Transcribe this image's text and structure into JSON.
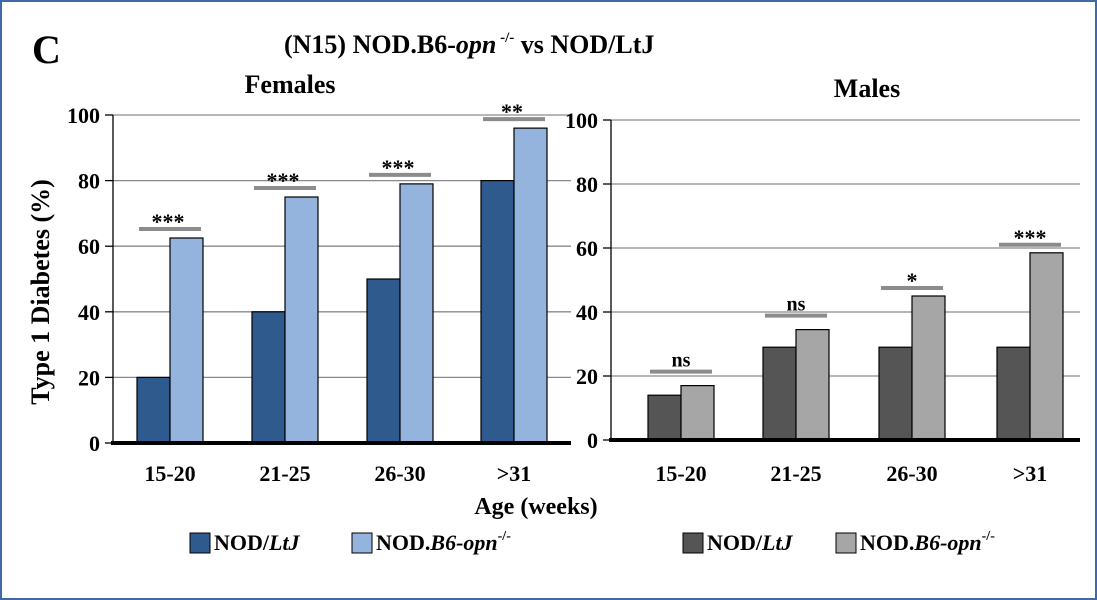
{
  "panel_letter": "C",
  "figure_title": {
    "prefix": "(N15) NOD.B6-",
    "gene": "opn",
    "superscript": " -/-",
    "suffix": " vs NOD/LtJ"
  },
  "shared_ylabel": "Type 1 Diabetes (%)",
  "shared_xlabel": "Age (weeks)",
  "colors": {
    "female_nod_ltj": "#2f5a8e",
    "female_opn_ko": "#94b4dd",
    "male_nod_ltj": "#555555",
    "male_opn_ko": "#a6a6a6",
    "significance_bar": "#8c8c8c",
    "frame": "#3f6aa6"
  },
  "chart_data": [
    {
      "type": "bar",
      "title": "Females",
      "ylabel": "Type 1 Diabetes (%)",
      "xlabel": "Age (weeks)",
      "ylim": [
        0,
        100
      ],
      "yticks": [
        "0",
        "20",
        "40",
        "60",
        "80",
        "100"
      ],
      "grid": true,
      "categories": [
        "15-20",
        "21-25",
        "26-30",
        ">31"
      ],
      "series": [
        {
          "name": "NOD/LtJ",
          "values": [
            20,
            40,
            50,
            80
          ],
          "color": "#2f5a8e"
        },
        {
          "name": "NOD.B6-opn-/-",
          "values": [
            62.5,
            75,
            79,
            96
          ],
          "color": "#94b4dd"
        }
      ],
      "significance": [
        "***",
        "***",
        "***",
        "**"
      ],
      "legend": {
        "position": "bottom",
        "entries": [
          {
            "prefix": "NOD/",
            "italic": "LtJ",
            "sup": ""
          },
          {
            "prefix": "NOD.",
            "italic": "B6-opn",
            "sup": "-/-"
          }
        ]
      }
    },
    {
      "type": "bar",
      "title": "Males",
      "ylim": [
        0,
        100
      ],
      "yticks": [
        "0",
        "20",
        "40",
        "60",
        "80",
        "100"
      ],
      "grid": true,
      "categories": [
        "15-20",
        "21-25",
        "26-30",
        ">31"
      ],
      "series": [
        {
          "name": "NOD/LtJ",
          "values": [
            14,
            29,
            29,
            29
          ],
          "color": "#555555"
        },
        {
          "name": "NOD.B6-opn-/-",
          "values": [
            17,
            34.5,
            45,
            58.5
          ],
          "color": "#a6a6a6"
        }
      ],
      "significance": [
        "ns",
        "ns",
        "*",
        "***"
      ],
      "legend": {
        "position": "bottom",
        "entries": [
          {
            "prefix": "NOD/",
            "italic": "LtJ",
            "sup": ""
          },
          {
            "prefix": "NOD.",
            "italic": "B6-opn",
            "sup": "-/-"
          }
        ]
      }
    }
  ]
}
